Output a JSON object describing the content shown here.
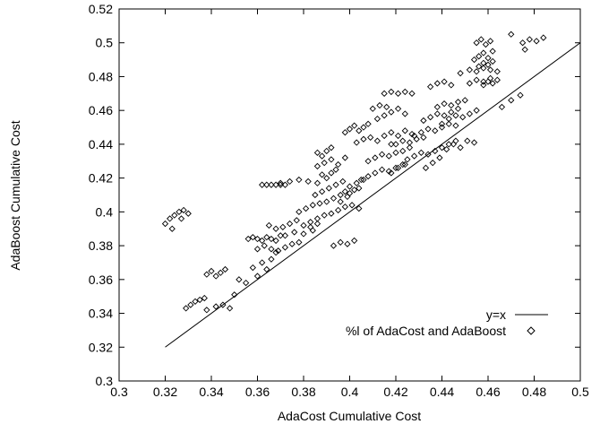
{
  "chart_data": {
    "type": "scatter",
    "title": "",
    "xlabel": "AdaCost Cumulative Cost",
    "ylabel": "AdaBoost Cumulative Cost",
    "xlim": [
      0.3,
      0.5
    ],
    "ylim": [
      0.3,
      0.52
    ],
    "x_ticks": [
      0.3,
      0.32,
      0.34,
      0.36,
      0.38,
      0.4,
      0.42,
      0.44,
      0.46,
      0.48,
      0.5
    ],
    "y_ticks": [
      0.3,
      0.32,
      0.34,
      0.36,
      0.38,
      0.4,
      0.42,
      0.44,
      0.46,
      0.48,
      0.5,
      0.52
    ],
    "x_tick_labels": [
      "0.3",
      "0.32",
      "0.34",
      "0.36",
      "0.38",
      "0.4",
      "0.42",
      "0.44",
      "0.46",
      "0.48",
      "0.5"
    ],
    "y_tick_labels": [
      "0.3",
      "0.32",
      "0.34",
      "0.36",
      "0.38",
      "0.4",
      "0.42",
      "0.44",
      "0.46",
      "0.48",
      "0.5",
      "0.52"
    ],
    "grid": false,
    "legend_position": "bottom-right",
    "series": [
      {
        "name": "y=x",
        "style": "line",
        "color": "#000000",
        "x": [
          0.32,
          0.5
        ],
        "y": [
          0.32,
          0.5
        ]
      },
      {
        "name": "%l of AdaCost and AdaBoost",
        "style": "diamond-markers",
        "color": "#000000",
        "x": [
          0.32,
          0.322,
          0.324,
          0.326,
          0.328,
          0.33,
          0.323,
          0.327,
          0.329,
          0.331,
          0.333,
          0.335,
          0.337,
          0.338,
          0.34,
          0.342,
          0.344,
          0.346,
          0.35,
          0.352,
          0.355,
          0.358,
          0.36,
          0.362,
          0.364,
          0.366,
          0.368,
          0.356,
          0.358,
          0.36,
          0.362,
          0.364,
          0.366,
          0.368,
          0.37,
          0.36,
          0.363,
          0.366,
          0.369,
          0.372,
          0.375,
          0.378,
          0.365,
          0.368,
          0.371,
          0.374,
          0.377,
          0.38,
          0.383,
          0.386,
          0.362,
          0.364,
          0.366,
          0.368,
          0.37,
          0.372,
          0.37,
          0.374,
          0.378,
          0.382,
          0.386,
          0.378,
          0.381,
          0.384,
          0.387,
          0.39,
          0.393,
          0.396,
          0.399,
          0.383,
          0.386,
          0.389,
          0.392,
          0.395,
          0.398,
          0.401,
          0.404,
          0.385,
          0.388,
          0.391,
          0.394,
          0.397,
          0.4,
          0.403,
          0.406,
          0.386,
          0.389,
          0.392,
          0.395,
          0.398,
          0.386,
          0.388,
          0.39,
          0.392,
          0.388,
          0.39,
          0.392,
          0.394,
          0.396,
          0.398,
          0.4,
          0.402,
          0.404,
          0.398,
          0.4,
          0.402,
          0.404,
          0.406,
          0.408,
          0.403,
          0.406,
          0.409,
          0.412,
          0.415,
          0.418,
          0.405,
          0.408,
          0.411,
          0.414,
          0.417,
          0.42,
          0.423,
          0.408,
          0.411,
          0.414,
          0.417,
          0.42,
          0.423,
          0.426,
          0.412,
          0.415,
          0.418,
          0.421,
          0.424,
          0.41,
          0.413,
          0.416,
          0.415,
          0.418,
          0.421,
          0.424,
          0.427,
          0.418,
          0.421,
          0.424,
          0.427,
          0.42,
          0.423,
          0.426,
          0.429,
          0.432,
          0.425,
          0.428,
          0.431,
          0.434,
          0.437,
          0.44,
          0.443,
          0.446,
          0.428,
          0.431,
          0.434,
          0.437,
          0.44,
          0.443,
          0.446,
          0.432,
          0.435,
          0.438,
          0.441,
          0.444,
          0.447,
          0.435,
          0.438,
          0.441,
          0.444,
          0.438,
          0.441,
          0.444,
          0.447,
          0.45,
          0.44,
          0.443,
          0.446,
          0.449,
          0.452,
          0.455,
          0.442,
          0.445,
          0.448,
          0.451,
          0.454,
          0.448,
          0.452,
          0.455,
          0.458,
          0.461,
          0.464,
          0.452,
          0.455,
          0.458,
          0.461,
          0.454,
          0.456,
          0.458,
          0.46,
          0.462,
          0.455,
          0.457,
          0.459,
          0.461,
          0.456,
          0.458,
          0.46,
          0.462,
          0.458,
          0.46,
          0.462,
          0.464,
          0.475,
          0.478,
          0.481,
          0.484,
          0.47,
          0.476,
          0.372,
          0.376,
          0.38,
          0.384,
          0.338,
          0.342,
          0.345,
          0.348,
          0.393,
          0.396,
          0.399,
          0.402,
          0.418,
          0.421,
          0.424,
          0.433,
          0.436,
          0.439,
          0.466,
          0.47,
          0.474
        ],
        "y": [
          0.393,
          0.396,
          0.398,
          0.4,
          0.401,
          0.399,
          0.39,
          0.396,
          0.343,
          0.345,
          0.347,
          0.348,
          0.349,
          0.363,
          0.365,
          0.362,
          0.364,
          0.366,
          0.351,
          0.36,
          0.358,
          0.367,
          0.362,
          0.37,
          0.366,
          0.372,
          0.376,
          0.384,
          0.385,
          0.384,
          0.383,
          0.385,
          0.384,
          0.383,
          0.386,
          0.378,
          0.38,
          0.378,
          0.377,
          0.379,
          0.381,
          0.382,
          0.392,
          0.39,
          0.391,
          0.393,
          0.395,
          0.392,
          0.391,
          0.393,
          0.416,
          0.416,
          0.416,
          0.416,
          0.416,
          0.416,
          0.417,
          0.418,
          0.419,
          0.418,
          0.417,
          0.4,
          0.402,
          0.404,
          0.405,
          0.406,
          0.408,
          0.406,
          0.409,
          0.394,
          0.396,
          0.398,
          0.399,
          0.401,
          0.403,
          0.404,
          0.402,
          0.41,
          0.412,
          0.414,
          0.416,
          0.418,
          0.415,
          0.417,
          0.419,
          0.427,
          0.429,
          0.431,
          0.428,
          0.432,
          0.435,
          0.433,
          0.436,
          0.438,
          0.422,
          0.42,
          0.423,
          0.425,
          0.41,
          0.412,
          0.411,
          0.413,
          0.414,
          0.447,
          0.449,
          0.451,
          0.448,
          0.45,
          0.452,
          0.441,
          0.443,
          0.444,
          0.442,
          0.445,
          0.44,
          0.419,
          0.421,
          0.423,
          0.425,
          0.424,
          0.426,
          0.428,
          0.43,
          0.432,
          0.434,
          0.433,
          0.435,
          0.436,
          0.438,
          0.455,
          0.457,
          0.459,
          0.461,
          0.458,
          0.461,
          0.463,
          0.462,
          0.47,
          0.471,
          0.47,
          0.471,
          0.47,
          0.447,
          0.445,
          0.448,
          0.446,
          0.44,
          0.442,
          0.441,
          0.443,
          0.444,
          0.431,
          0.433,
          0.435,
          0.434,
          0.436,
          0.438,
          0.44,
          0.442,
          0.445,
          0.447,
          0.449,
          0.448,
          0.45,
          0.452,
          0.451,
          0.454,
          0.456,
          0.458,
          0.457,
          0.459,
          0.461,
          0.474,
          0.476,
          0.477,
          0.475,
          0.462,
          0.464,
          0.463,
          0.465,
          0.466,
          0.452,
          0.455,
          0.457,
          0.456,
          0.458,
          0.46,
          0.437,
          0.44,
          0.438,
          0.442,
          0.441,
          0.482,
          0.484,
          0.483,
          0.485,
          0.484,
          0.483,
          0.476,
          0.478,
          0.477,
          0.479,
          0.49,
          0.492,
          0.494,
          0.491,
          0.495,
          0.5,
          0.502,
          0.499,
          0.501,
          0.486,
          0.488,
          0.487,
          0.489,
          0.475,
          0.477,
          0.476,
          0.478,
          0.5,
          0.502,
          0.501,
          0.503,
          0.505,
          0.496,
          0.386,
          0.388,
          0.387,
          0.389,
          0.342,
          0.344,
          0.345,
          0.343,
          0.38,
          0.382,
          0.381,
          0.383,
          0.423,
          0.426,
          0.428,
          0.426,
          0.429,
          0.432,
          0.462,
          0.466,
          0.469
        ]
      }
    ]
  }
}
